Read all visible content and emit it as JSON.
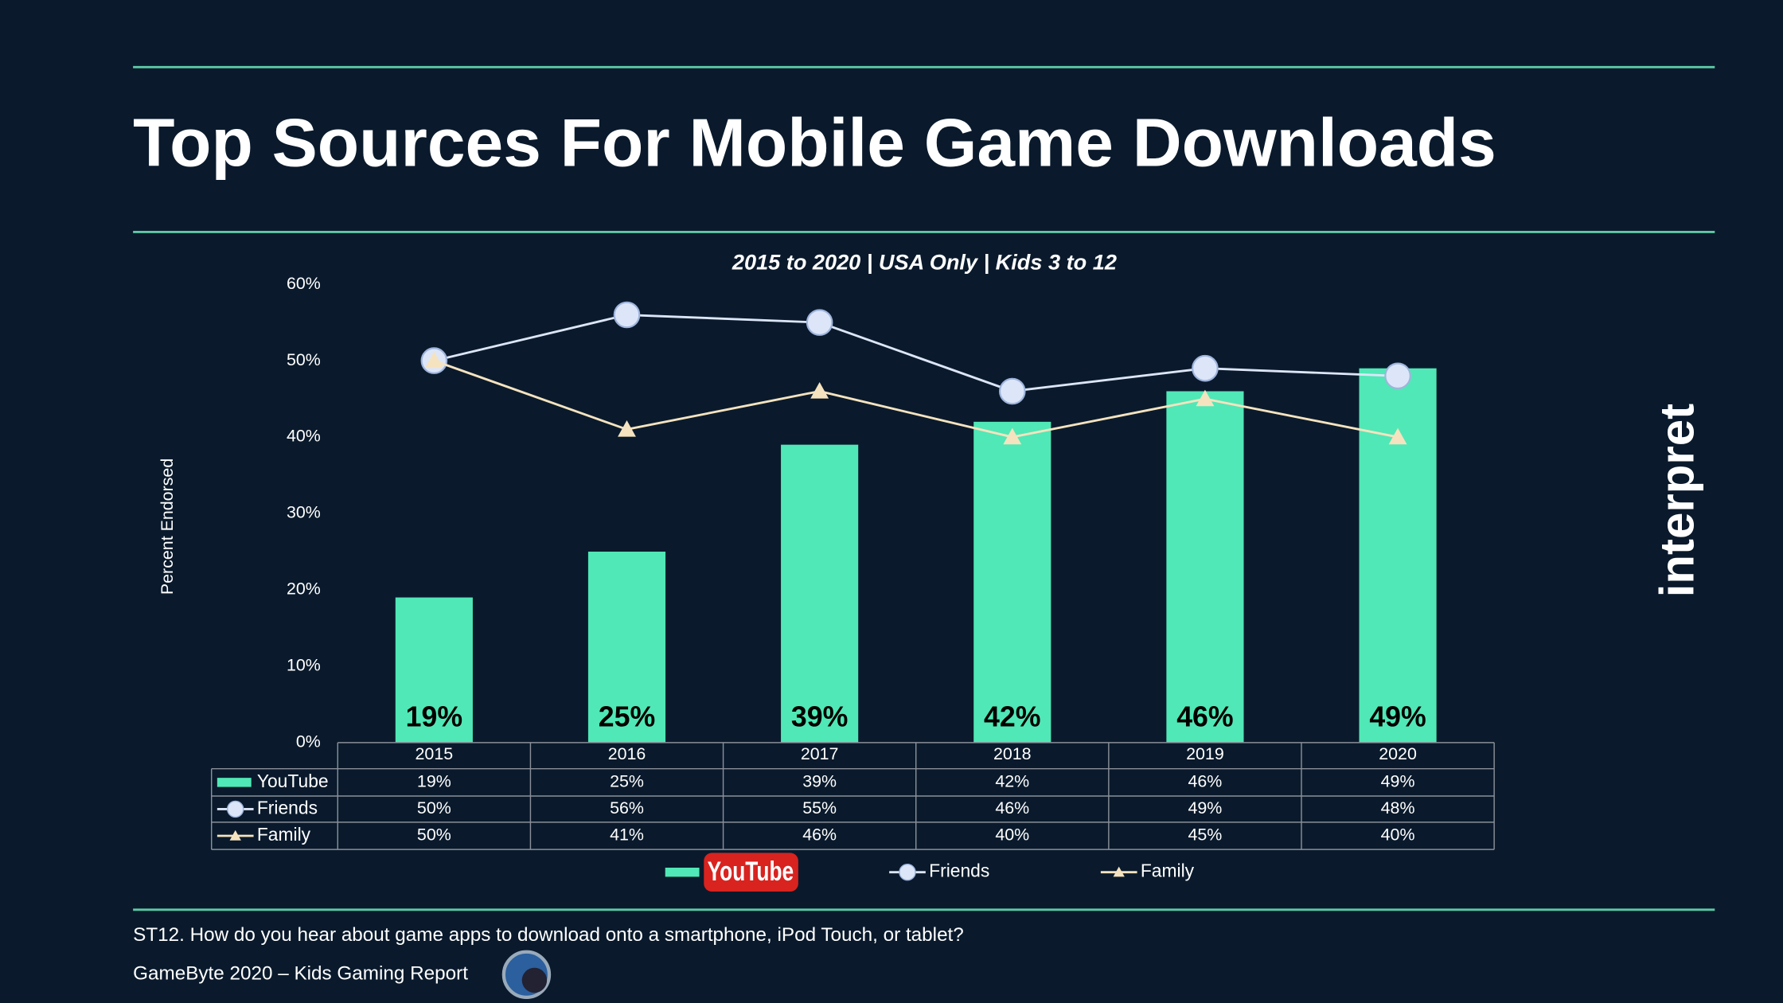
{
  "chart_data": {
    "type": "bar",
    "title": "Top Sources For Mobile Game Downloads",
    "subtitle": "2015 to 2020 | USA Only | Kids 3 to 12",
    "y_label": "Percent Endorsed",
    "categories": [
      "2015",
      "2016",
      "2017",
      "2018",
      "2019",
      "2020"
    ],
    "series": [
      {
        "name": "YouTube",
        "type": "bar",
        "color": "#50e8b6",
        "values": [
          19,
          25,
          39,
          42,
          46,
          49
        ],
        "value_labels": [
          "19%",
          "25%",
          "39%",
          "42%",
          "46%",
          "49%"
        ]
      },
      {
        "name": "Friends",
        "type": "line",
        "marker": "circle",
        "color": "#dce6f8",
        "values": [
          50,
          56,
          55,
          46,
          49,
          48
        ],
        "value_labels": [
          "50%",
          "56%",
          "55%",
          "46%",
          "49%",
          "48%"
        ]
      },
      {
        "name": "Family",
        "type": "line",
        "marker": "triangle",
        "color": "#f5e3bf",
        "values": [
          50,
          41,
          46,
          40,
          45,
          40
        ],
        "value_labels": [
          "50%",
          "41%",
          "46%",
          "40%",
          "45%",
          "40%"
        ]
      }
    ],
    "ylim": [
      0,
      60
    ],
    "yticks": [
      {
        "value": 0,
        "label": "0%"
      },
      {
        "value": 10,
        "label": "10%"
      },
      {
        "value": 20,
        "label": "20%"
      },
      {
        "value": 30,
        "label": "30%"
      },
      {
        "value": 40,
        "label": "40%"
      },
      {
        "value": 50,
        "label": "50%"
      },
      {
        "value": 60,
        "label": "60%"
      }
    ],
    "grid": false
  },
  "brand": "interpret",
  "footnote": "ST12. How do you hear about game apps to download onto a smartphone, iPod Touch, or tablet?",
  "source": "GameByte 2020 – Kids Gaming Report"
}
